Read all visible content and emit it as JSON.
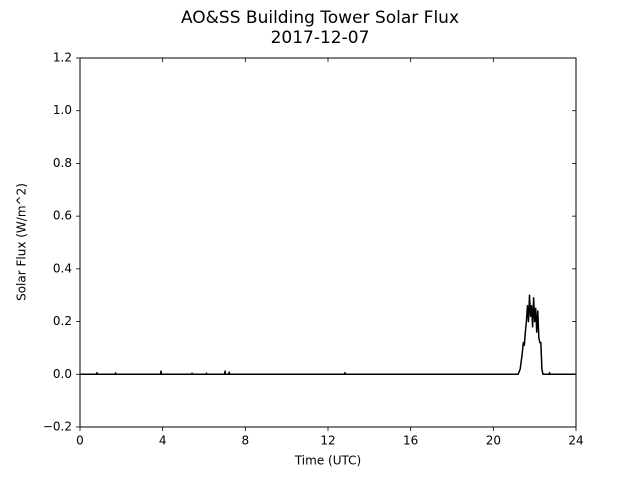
{
  "chart_data": {
    "type": "line",
    "title": "AO&SS Building Tower Solar Flux",
    "subtitle": "2017-12-07",
    "x_label": "Time (UTC)",
    "y_label": "Solar Flux (W/m^2)",
    "color": "#000000",
    "x": [
      0,
      0.8,
      0.82,
      0.84,
      1.7,
      1.72,
      1.74,
      3.9,
      3.92,
      3.94,
      5.4,
      5.42,
      5.44,
      6.1,
      6.12,
      6.14,
      7.0,
      7.02,
      7.04,
      7.2,
      7.22,
      7.24,
      12.8,
      12.82,
      12.84,
      21.2,
      21.3,
      21.35,
      21.4,
      21.45,
      21.5,
      21.55,
      21.6,
      21.65,
      21.7,
      21.75,
      21.8,
      21.85,
      21.9,
      21.95,
      22.0,
      22.05,
      22.1,
      22.15,
      22.2,
      22.25,
      22.3,
      22.35,
      22.4,
      22.5,
      22.7,
      22.72,
      22.74,
      24
    ],
    "values": [
      0,
      0,
      0.006,
      0,
      0,
      0.005,
      0,
      0,
      0.012,
      0,
      0,
      0.004,
      0,
      0,
      0.004,
      0,
      0,
      0.012,
      0,
      0,
      0.008,
      0,
      0,
      0.006,
      0,
      0,
      0.02,
      0.05,
      0.08,
      0.12,
      0.11,
      0.16,
      0.2,
      0.26,
      0.2,
      0.3,
      0.22,
      0.26,
      0.18,
      0.29,
      0.2,
      0.25,
      0.16,
      0.24,
      0.14,
      0.12,
      0.12,
      0.02,
      0,
      0,
      0,
      0.006,
      0,
      0
    ],
    "xlim": [
      0,
      24
    ],
    "xticks": [
      0,
      4,
      8,
      12,
      16,
      20,
      24
    ],
    "ylim": [
      -0.2,
      1.2
    ],
    "yticks": [
      {
        "value": -0.2,
        "label": "−0.2"
      },
      {
        "value": 0,
        "label": "0.0"
      },
      0.2,
      0.4,
      0.6,
      0.8,
      {
        "value": 1,
        "label": "1.0"
      },
      1.2
    ],
    "grid": false
  }
}
